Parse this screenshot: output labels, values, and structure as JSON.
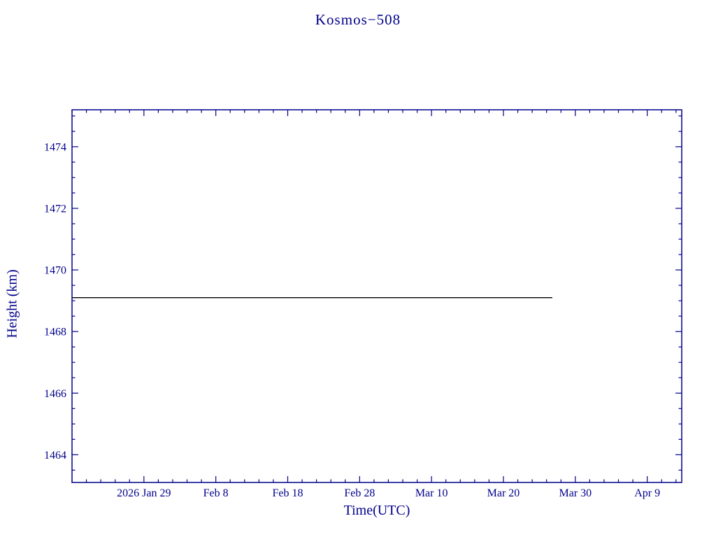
{
  "page": {
    "background": "#ffffff",
    "accent": "#00008b"
  },
  "chart_data": {
    "type": "line",
    "title": "Kosmos−508",
    "xlabel": "Time(UTC)",
    "ylabel": "Height (km)",
    "axis_color": "#00008b",
    "grid": false,
    "legend": "none",
    "x_unit": "days since 2026 Jan 19 (UTC)",
    "xlim": [
      0,
      84.8
    ],
    "ylim": [
      1463.1,
      1475.2
    ],
    "x_minor_step": 2,
    "y_minor_step": 0.5,
    "x_ticks": [
      {
        "pos": 10,
        "label": "2026 Jan 29"
      },
      {
        "pos": 20,
        "label": "Feb 8"
      },
      {
        "pos": 30,
        "label": "Feb 18"
      },
      {
        "pos": 40,
        "label": "Feb 28"
      },
      {
        "pos": 50,
        "label": "Mar 10"
      },
      {
        "pos": 60,
        "label": "Mar 20"
      },
      {
        "pos": 70,
        "label": "Mar 30"
      },
      {
        "pos": 80,
        "label": "Apr 9"
      }
    ],
    "y_ticks": [
      1464,
      1466,
      1468,
      1470,
      1472,
      1474
    ],
    "series": [
      {
        "name": "orbit-height",
        "color": "#000000",
        "points": [
          [
            0,
            1469.1
          ],
          [
            66.8,
            1469.1
          ]
        ]
      }
    ]
  }
}
